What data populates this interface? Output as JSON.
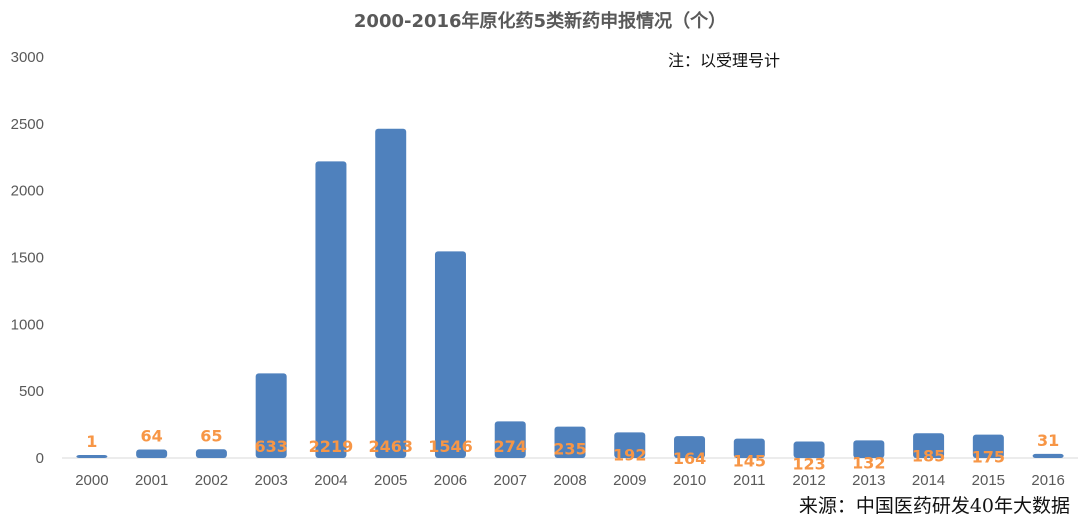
{
  "chart_data": {
    "type": "bar",
    "title": "2000-2016年原化药5类新药申报情况（个）",
    "note": "注：以受理号计",
    "source": "来源：中国医药研发40年大数据",
    "categories": [
      "2000",
      "2001",
      "2002",
      "2003",
      "2004",
      "2005",
      "2006",
      "2007",
      "2008",
      "2009",
      "2010",
      "2011",
      "2012",
      "2013",
      "2014",
      "2015",
      "2016"
    ],
    "values": [
      1,
      64,
      65,
      633,
      2219,
      2463,
      1546,
      274,
      235,
      192,
      164,
      145,
      123,
      132,
      185,
      175,
      31
    ],
    "data_labels": [
      "1",
      "64",
      "65",
      "633",
      "2219",
      "2463",
      "1546",
      "274",
      "235",
      "192",
      "164",
      "145",
      "123",
      "132",
      "185",
      "175",
      "31"
    ],
    "ylim": [
      0,
      3000
    ],
    "yticks": [
      0,
      500,
      1000,
      1500,
      2000,
      2500,
      3000
    ],
    "ytick_labels": [
      "0",
      "500",
      "1000",
      "1500",
      "2000",
      "2500",
      "3000"
    ],
    "xlabel": "",
    "ylabel": "",
    "grid": false,
    "colors": {
      "bar": "#4f81bd",
      "label": "#f79646",
      "axis": "#d9d9d9"
    }
  }
}
